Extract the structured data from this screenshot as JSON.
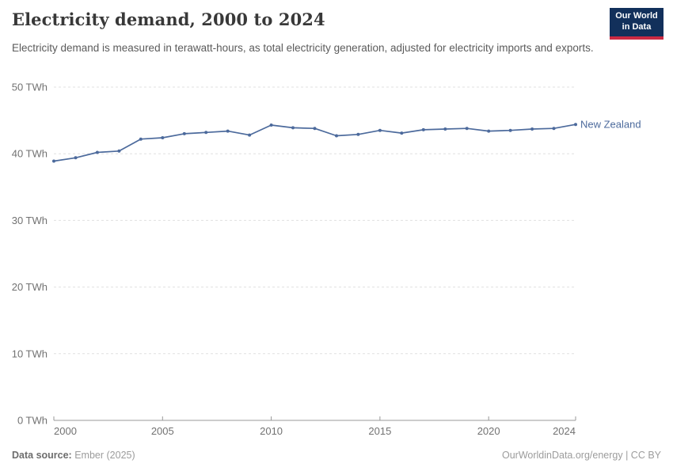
{
  "header": {
    "title": "Electricity demand, 2000 to 2024",
    "subtitle": "Electricity demand is measured in terawatt-hours, as total electricity generation, adjusted for electricity imports and exports.",
    "logo": {
      "line1": "Our World",
      "line2": "in Data",
      "bg_color": "#12305B",
      "accent_color": "#CB2A43"
    }
  },
  "footer": {
    "source_label": "Data source:",
    "source_value": " Ember (2025)",
    "license": "OurWorldinData.org/energy | CC BY"
  },
  "chart_data": {
    "type": "line",
    "title": "Electricity demand, 2000 to 2024",
    "unit": "TWh",
    "x": [
      2000,
      2001,
      2002,
      2003,
      2004,
      2005,
      2006,
      2007,
      2008,
      2009,
      2010,
      2011,
      2012,
      2013,
      2014,
      2015,
      2016,
      2017,
      2018,
      2019,
      2020,
      2021,
      2022,
      2023,
      2024
    ],
    "series": [
      {
        "name": "New Zealand",
        "color": "#4C6A9C",
        "values": [
          38.9,
          39.4,
          40.2,
          40.4,
          42.2,
          42.4,
          43.0,
          43.2,
          43.4,
          42.8,
          44.3,
          43.9,
          43.8,
          42.7,
          42.9,
          43.5,
          43.1,
          43.6,
          43.7,
          43.8,
          43.4,
          43.5,
          43.7,
          43.8,
          44.4
        ]
      }
    ],
    "ylim": [
      0,
      50
    ],
    "yticks": [
      0,
      10,
      20,
      30,
      40,
      50
    ],
    "ytick_suffix": " TWh",
    "xticks": [
      2000,
      2005,
      2010,
      2015,
      2020,
      2024
    ],
    "grid": "horizontal-dashed",
    "legend_position": "end-of-line",
    "end_label": "New Zealand"
  },
  "style_colors": {
    "series_blue": "#4C6A9C",
    "gridline": "#e0e0e0",
    "axis": "#989898",
    "tick_label": "#727272"
  }
}
